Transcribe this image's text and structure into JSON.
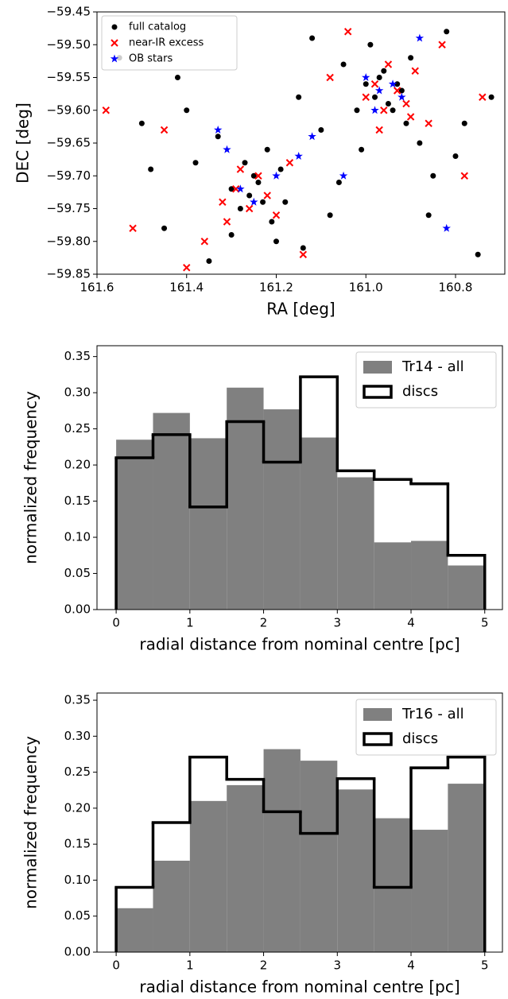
{
  "chart_data": [
    {
      "type": "scatter",
      "xlabel": "RA [deg]",
      "ylabel": "DEC [deg]",
      "xlim": [
        161.6,
        160.69
      ],
      "ylim": [
        -59.85,
        -59.45
      ],
      "xticks": [
        161.6,
        161.4,
        161.2,
        {
          "value": 161.0,
          "label": "161.0"
        },
        160.8
      ],
      "yticks": [
        {
          "value": -59.85,
          "label": "−59.85"
        },
        {
          "value": -59.8,
          "label": "−59.80"
        },
        {
          "value": -59.75,
          "label": "−59.75"
        },
        {
          "value": -59.7,
          "label": "−59.70"
        },
        {
          "value": -59.65,
          "label": "−59.65"
        },
        {
          "value": -59.6,
          "label": "−59.60"
        },
        {
          "value": -59.55,
          "label": "−59.55"
        },
        {
          "value": -59.5,
          "label": "−59.50"
        },
        {
          "value": -59.45,
          "label": "−59.45"
        }
      ],
      "legend": "upper left",
      "series": [
        {
          "name": "full catalog",
          "color": "#000000",
          "marker": "circle",
          "x": [
            161.55,
            161.5,
            161.45,
            161.42,
            161.38,
            161.35,
            161.3,
            161.28,
            161.25,
            161.22,
            161.2,
            161.18,
            161.15,
            161.12,
            161.1,
            161.08,
            161.05,
            161.02,
            161.0,
            160.98,
            160.96,
            160.94,
            160.92,
            160.9,
            160.88,
            160.85,
            160.82,
            160.78,
            160.75,
            160.72,
            161.26,
            161.24,
            161.21,
            161.19,
            161.23,
            161.27,
            161.3,
            160.97,
            160.95,
            160.93,
            160.99,
            161.01,
            160.91,
            161.48,
            161.4,
            161.33,
            161.14,
            161.06,
            160.86,
            160.8
          ],
          "y": [
            -59.52,
            -59.62,
            -59.78,
            -59.55,
            -59.68,
            -59.83,
            -59.72,
            -59.75,
            -59.7,
            -59.66,
            -59.8,
            -59.74,
            -59.58,
            -59.49,
            -59.63,
            -59.76,
            -59.53,
            -59.6,
            -59.56,
            -59.58,
            -59.54,
            -59.6,
            -59.57,
            -59.52,
            -59.65,
            -59.7,
            -59.48,
            -59.62,
            -59.82,
            -59.58,
            -59.73,
            -59.71,
            -59.77,
            -59.69,
            -59.74,
            -59.68,
            -59.79,
            -59.55,
            -59.59,
            -59.56,
            -59.5,
            -59.66,
            -59.62,
            -59.69,
            -59.6,
            -59.64,
            -59.81,
            -59.71,
            -59.76,
            -59.67
          ]
        },
        {
          "name": "near-IR excess",
          "color": "#ff0000",
          "marker": "x",
          "x": [
            161.58,
            161.52,
            161.45,
            161.36,
            161.32,
            161.29,
            161.26,
            161.24,
            161.22,
            161.2,
            161.17,
            161.14,
            161.08,
            161.04,
            161.0,
            160.98,
            160.96,
            160.95,
            160.93,
            160.91,
            160.89,
            160.86,
            160.83,
            160.78,
            160.74,
            161.4,
            161.28,
            161.31,
            160.97,
            160.9
          ],
          "y": [
            -59.6,
            -59.78,
            -59.63,
            -59.8,
            -59.74,
            -59.72,
            -59.75,
            -59.7,
            -59.73,
            -59.76,
            -59.68,
            -59.82,
            -59.55,
            -59.48,
            -59.58,
            -59.56,
            -59.6,
            -59.53,
            -59.57,
            -59.59,
            -59.54,
            -59.62,
            -59.5,
            -59.7,
            -59.58,
            -59.84,
            -59.69,
            -59.77,
            -59.63,
            -59.61
          ]
        },
        {
          "name": "OB stars",
          "color": "#0000ff",
          "marker": "star",
          "x": [
            161.33,
            161.31,
            161.28,
            161.25,
            161.2,
            161.15,
            161.12,
            161.0,
            160.97,
            160.94,
            160.92,
            160.88,
            160.98,
            161.05,
            160.82
          ],
          "y": [
            -59.63,
            -59.66,
            -59.72,
            -59.74,
            -59.7,
            -59.67,
            -59.64,
            -59.55,
            -59.57,
            -59.56,
            -59.58,
            -59.49,
            -59.6,
            -59.7,
            -59.78
          ]
        }
      ]
    },
    {
      "type": "histogram",
      "xlabel": "radial distance from nominal centre [pc]",
      "ylabel": "normalized frequency",
      "xlim": [
        -0.26,
        5.24
      ],
      "ylim": [
        0,
        0.365
      ],
      "xticks": [
        0,
        1,
        2,
        3,
        4,
        5
      ],
      "yticks": [
        {
          "value": 0,
          "label": "0.00"
        },
        {
          "value": 0.05,
          "label": "0.05"
        },
        {
          "value": 0.1,
          "label": "0.10"
        },
        {
          "value": 0.15,
          "label": "0.15"
        },
        {
          "value": 0.2,
          "label": "0.20"
        },
        {
          "value": 0.25,
          "label": "0.25"
        },
        {
          "value": 0.3,
          "label": "0.30"
        },
        {
          "value": 0.35,
          "label": "0.35"
        }
      ],
      "legend": "upper right",
      "bins": [
        0,
        0.5,
        1,
        1.5,
        2,
        2.5,
        3,
        3.5,
        4,
        4.5,
        5
      ],
      "series": [
        {
          "name": "Tr14 - all",
          "color": "#808080",
          "histtype": "bar",
          "values": [
            0.235,
            0.272,
            0.237,
            0.307,
            0.277,
            0.238,
            0.183,
            0.093,
            0.095,
            0.061
          ]
        },
        {
          "name": "discs",
          "color": "#000000",
          "histtype": "step",
          "values": [
            0.21,
            0.242,
            0.142,
            0.26,
            0.204,
            0.322,
            0.192,
            0.18,
            0.174,
            0.075
          ]
        }
      ]
    },
    {
      "type": "histogram",
      "xlabel": "radial distance from nominal centre [pc]",
      "ylabel": "normalized frequency",
      "xlim": [
        -0.26,
        5.24
      ],
      "ylim": [
        0,
        0.36
      ],
      "xticks": [
        0,
        1,
        2,
        3,
        4,
        5
      ],
      "yticks": [
        {
          "value": 0,
          "label": "0.00"
        },
        {
          "value": 0.05,
          "label": "0.05"
        },
        {
          "value": 0.1,
          "label": "0.10"
        },
        {
          "value": 0.15,
          "label": "0.15"
        },
        {
          "value": 0.2,
          "label": "0.20"
        },
        {
          "value": 0.25,
          "label": "0.25"
        },
        {
          "value": 0.3,
          "label": "0.30"
        },
        {
          "value": 0.35,
          "label": "0.35"
        }
      ],
      "legend": "upper right",
      "bins": [
        0,
        0.5,
        1,
        1.5,
        2,
        2.5,
        3,
        3.5,
        4,
        4.5,
        5
      ],
      "series": [
        {
          "name": "Tr16 - all",
          "color": "#808080",
          "histtype": "bar",
          "values": [
            0.061,
            0.127,
            0.21,
            0.232,
            0.282,
            0.266,
            0.226,
            0.186,
            0.17,
            0.234
          ]
        },
        {
          "name": "discs",
          "color": "#000000",
          "histtype": "step",
          "values": [
            0.09,
            0.18,
            0.271,
            0.24,
            0.195,
            0.165,
            0.241,
            0.09,
            0.256,
            0.271
          ]
        }
      ]
    }
  ]
}
